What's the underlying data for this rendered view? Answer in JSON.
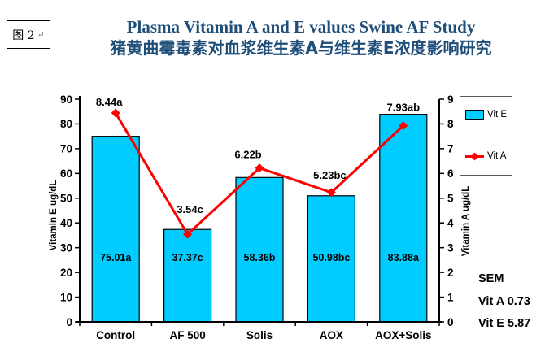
{
  "figure_tag": {
    "label": "图 2",
    "return_mark": "↵"
  },
  "title": {
    "line1": "Plasma Vitamin A and E values Swine AF Study",
    "line2": "猪黄曲霉毒素对血浆维生素A与维生素E浓度影响研究",
    "color": "#1F4E79"
  },
  "chart_data": {
    "type": "combo",
    "categories": [
      "Control",
      "AF 500",
      "Solis",
      "AOX",
      "AOX+Solis"
    ],
    "series": [
      {
        "name": "Vit E",
        "type": "bar",
        "axis": "left",
        "values": [
          75.01,
          37.37,
          58.36,
          50.98,
          83.88
        ],
        "labels": [
          "75.01a",
          "37.37c",
          "58.36b",
          "50.98bc",
          "83.88a"
        ],
        "color": "#00CCFF",
        "border_color": "#000000"
      },
      {
        "name": "Vit A",
        "type": "line",
        "axis": "right",
        "values": [
          8.44,
          3.54,
          6.22,
          5.23,
          7.93
        ],
        "labels": [
          "8.44a",
          "3.54c",
          "6.22b",
          "5.23bc",
          "7.93ab"
        ],
        "color": "#FF0000",
        "marker": "diamond"
      }
    ],
    "left_axis": {
      "label": "Vitamin E ug/dL",
      "min": 0,
      "max": 90,
      "step": 10
    },
    "right_axis": {
      "label": "Vitamin A ug/dL",
      "min": 0,
      "max": 9,
      "step": 1
    },
    "legend": {
      "position": "right",
      "entries": [
        "Vit E",
        "Vit A"
      ]
    },
    "grid": false
  },
  "annotations": {
    "sem_title": "SEM",
    "sem_vit_a": "Vit A 0.73",
    "sem_vit_e": "Vit E 5.87"
  }
}
